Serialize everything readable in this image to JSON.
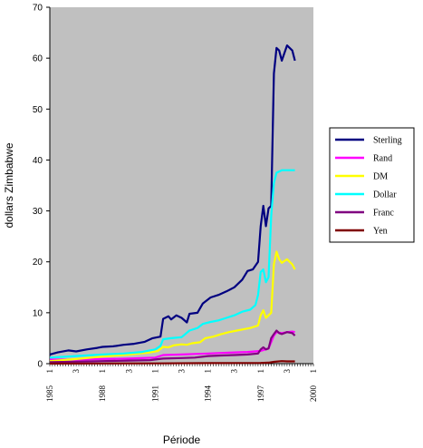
{
  "chart_data": {
    "type": "line",
    "title": "",
    "xlabel": "Période",
    "ylabel": "dollars Zimbabwe",
    "ylim": [
      0,
      70
    ],
    "yticks": [
      0,
      10,
      20,
      30,
      40,
      50,
      60,
      70
    ],
    "grid": false,
    "legend_position": "right",
    "background_color": "#c0c0c0",
    "x_tick_labels": [
      {
        "index": 0,
        "quarter": "1",
        "year": "1985"
      },
      {
        "index": 10,
        "quarter": "3",
        "year": ""
      },
      {
        "index": 20,
        "quarter": "1",
        "year": "1988"
      },
      {
        "index": 30,
        "quarter": "3",
        "year": ""
      },
      {
        "index": 40,
        "quarter": "1",
        "year": "1991"
      },
      {
        "index": 50,
        "quarter": "3",
        "year": ""
      },
      {
        "index": 60,
        "quarter": "1",
        "year": "1994"
      },
      {
        "index": 70,
        "quarter": "3",
        "year": ""
      },
      {
        "index": 80,
        "quarter": "1",
        "year": "1997"
      },
      {
        "index": 90,
        "quarter": "3",
        "year": ""
      },
      {
        "index": 100,
        "quarter": "1",
        "year": "2000"
      }
    ],
    "x_count": 101,
    "series": [
      {
        "name": "Sterling",
        "color": "#000080",
        "points": [
          [
            0,
            1.8
          ],
          [
            3,
            2.2
          ],
          [
            7,
            2.6
          ],
          [
            10,
            2.4
          ],
          [
            14,
            2.8
          ],
          [
            18,
            3.1
          ],
          [
            20,
            3.3
          ],
          [
            24,
            3.4
          ],
          [
            28,
            3.7
          ],
          [
            32,
            3.9
          ],
          [
            36,
            4.3
          ],
          [
            39,
            5.0
          ],
          [
            42,
            5.3
          ],
          [
            43,
            8.8
          ],
          [
            45,
            9.3
          ],
          [
            46,
            8.7
          ],
          [
            48,
            9.5
          ],
          [
            50,
            9.0
          ],
          [
            52,
            8.1
          ],
          [
            53,
            9.8
          ],
          [
            56,
            10.0
          ],
          [
            58,
            11.8
          ],
          [
            61,
            13.0
          ],
          [
            64,
            13.5
          ],
          [
            67,
            14.2
          ],
          [
            70,
            15.0
          ],
          [
            73,
            16.5
          ],
          [
            75,
            18.2
          ],
          [
            77,
            18.5
          ],
          [
            79,
            20.0
          ],
          [
            80,
            27.0
          ],
          [
            81,
            31.0
          ],
          [
            82,
            27.0
          ],
          [
            83,
            30.5
          ],
          [
            84,
            31.0
          ],
          [
            85,
            57.0
          ],
          [
            86,
            62.0
          ],
          [
            87,
            61.5
          ],
          [
            88,
            59.5
          ],
          [
            90,
            62.5
          ],
          [
            92,
            61.5
          ],
          [
            93,
            59.5
          ]
        ]
      },
      {
        "name": "Rand",
        "color": "#ff00ff",
        "points": [
          [
            0,
            0.8
          ],
          [
            10,
            0.8
          ],
          [
            20,
            0.9
          ],
          [
            30,
            1.0
          ],
          [
            40,
            1.2
          ],
          [
            43,
            1.7
          ],
          [
            50,
            1.8
          ],
          [
            55,
            1.9
          ],
          [
            60,
            2.0
          ],
          [
            65,
            2.1
          ],
          [
            70,
            2.2
          ],
          [
            75,
            2.3
          ],
          [
            80,
            2.5
          ],
          [
            83,
            3.0
          ],
          [
            85,
            5.5
          ],
          [
            86,
            6.2
          ],
          [
            88,
            6.0
          ],
          [
            90,
            6.2
          ],
          [
            92,
            6.3
          ],
          [
            93,
            6.2
          ]
        ]
      },
      {
        "name": "DM",
        "color": "#ffff00",
        "points": [
          [
            0,
            0.5
          ],
          [
            10,
            0.9
          ],
          [
            20,
            1.4
          ],
          [
            30,
            1.8
          ],
          [
            38,
            2.2
          ],
          [
            41,
            2.5
          ],
          [
            43,
            3.3
          ],
          [
            45,
            3.2
          ],
          [
            47,
            3.6
          ],
          [
            50,
            3.8
          ],
          [
            52,
            3.7
          ],
          [
            54,
            4.0
          ],
          [
            57,
            4.2
          ],
          [
            59,
            5.0
          ],
          [
            62,
            5.3
          ],
          [
            65,
            5.8
          ],
          [
            68,
            6.2
          ],
          [
            71,
            6.5
          ],
          [
            74,
            6.8
          ],
          [
            76,
            7.0
          ],
          [
            79,
            7.5
          ],
          [
            80,
            9.5
          ],
          [
            81,
            10.5
          ],
          [
            82,
            9.0
          ],
          [
            83,
            9.5
          ],
          [
            84,
            10.0
          ],
          [
            85,
            19.5
          ],
          [
            86,
            22.0
          ],
          [
            87,
            20.5
          ],
          [
            88,
            19.8
          ],
          [
            90,
            20.5
          ],
          [
            92,
            19.5
          ],
          [
            93,
            18.5
          ]
        ]
      },
      {
        "name": "Dollar",
        "color": "#00ffff",
        "points": [
          [
            0,
            1.2
          ],
          [
            10,
            1.5
          ],
          [
            20,
            1.8
          ],
          [
            28,
            2.0
          ],
          [
            35,
            2.3
          ],
          [
            40,
            2.8
          ],
          [
            42,
            3.5
          ],
          [
            43,
            4.8
          ],
          [
            46,
            5.0
          ],
          [
            50,
            5.2
          ],
          [
            53,
            6.5
          ],
          [
            56,
            7.0
          ],
          [
            58,
            7.8
          ],
          [
            61,
            8.2
          ],
          [
            64,
            8.5
          ],
          [
            67,
            9.0
          ],
          [
            70,
            9.5
          ],
          [
            73,
            10.2
          ],
          [
            76,
            10.6
          ],
          [
            78,
            11.5
          ],
          [
            79,
            13.5
          ],
          [
            80,
            18.0
          ],
          [
            81,
            18.5
          ],
          [
            82,
            16.0
          ],
          [
            83,
            17.0
          ],
          [
            84,
            29.0
          ],
          [
            85,
            35.5
          ],
          [
            86,
            37.5
          ],
          [
            88,
            38.0
          ],
          [
            93,
            38.0
          ]
        ]
      },
      {
        "name": "Franc",
        "color": "#800080",
        "points": [
          [
            0,
            0.3
          ],
          [
            10,
            0.4
          ],
          [
            20,
            0.5
          ],
          [
            30,
            0.6
          ],
          [
            38,
            0.7
          ],
          [
            43,
            1.0
          ],
          [
            50,
            1.1
          ],
          [
            55,
            1.2
          ],
          [
            60,
            1.5
          ],
          [
            65,
            1.6
          ],
          [
            70,
            1.7
          ],
          [
            75,
            1.8
          ],
          [
            79,
            2.0
          ],
          [
            80,
            2.8
          ],
          [
            81,
            3.2
          ],
          [
            82,
            2.8
          ],
          [
            83,
            3.0
          ],
          [
            84,
            5.0
          ],
          [
            85,
            5.8
          ],
          [
            86,
            6.5
          ],
          [
            87,
            6.0
          ],
          [
            88,
            5.8
          ],
          [
            90,
            6.2
          ],
          [
            92,
            6.0
          ],
          [
            93,
            5.5
          ]
        ]
      },
      {
        "name": "Yen",
        "color": "#800000",
        "points": [
          [
            0,
            0.02
          ],
          [
            20,
            0.04
          ],
          [
            40,
            0.06
          ],
          [
            60,
            0.1
          ],
          [
            80,
            0.15
          ],
          [
            83,
            0.2
          ],
          [
            85,
            0.35
          ],
          [
            88,
            0.5
          ],
          [
            90,
            0.45
          ],
          [
            93,
            0.45
          ]
        ]
      }
    ]
  }
}
